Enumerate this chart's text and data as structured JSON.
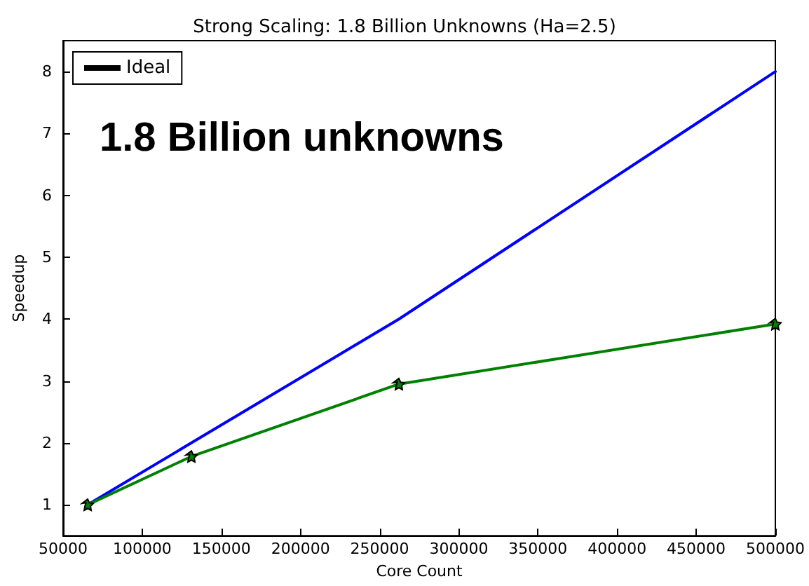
{
  "chart_data": {
    "type": "line",
    "title": "Strong Scaling: 1.8 Billion Unknowns (Ha=2.5)",
    "xlabel": "Core Count",
    "ylabel": "Speedup",
    "annotations": [
      "1.8 Billion unknowns"
    ],
    "xlim": [
      50000,
      500000
    ],
    "xticks": [
      50000,
      100000,
      150000,
      200000,
      250000,
      300000,
      350000,
      400000,
      450000,
      500000
    ],
    "ylim": [
      0.5,
      8.5
    ],
    "yticks": [
      1,
      2,
      3,
      4,
      5,
      6,
      7,
      8
    ],
    "grid": false,
    "legend": "top left",
    "series": [
      {
        "name": "Ideal",
        "color": "#0000ff",
        "x": [
          65536,
          131072,
          262144,
          500000
        ],
        "values": [
          1,
          2,
          4,
          8
        ],
        "marker": "none"
      },
      {
        "color": "#008000",
        "x": [
          65536,
          131072,
          262144,
          500000
        ],
        "values": [
          1,
          1.78,
          2.95,
          3.92
        ],
        "marker": "star"
      }
    ]
  }
}
